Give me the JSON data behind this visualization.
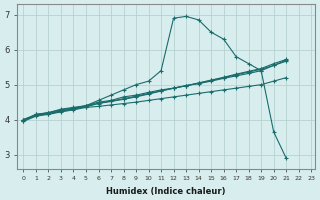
{
  "xlabel": "Humidex (Indice chaleur)",
  "ylabel": "",
  "bg_color": "#d8eeee",
  "grid_color": "#b0cccc",
  "line_color": "#1a6b6b",
  "xlim": [
    -0.5,
    23.3
  ],
  "ylim": [
    2.6,
    7.3
  ],
  "yticks": [
    3,
    4,
    5,
    6,
    7
  ],
  "xticks": [
    0,
    1,
    2,
    3,
    4,
    5,
    6,
    7,
    8,
    9,
    10,
    11,
    12,
    13,
    14,
    15,
    16,
    17,
    18,
    19,
    20,
    21,
    22,
    23
  ],
  "line1_x": [
    0,
    1,
    2,
    3,
    4,
    5,
    6,
    7,
    8,
    9,
    10,
    11,
    12,
    13,
    14,
    15,
    16,
    17,
    18,
    19,
    20,
    21
  ],
  "line1_y": [
    3.95,
    4.15,
    4.2,
    4.3,
    4.35,
    4.4,
    4.55,
    4.7,
    4.85,
    5.0,
    5.1,
    5.4,
    6.9,
    6.95,
    6.85,
    6.5,
    6.3,
    5.8,
    5.6,
    5.4,
    3.65,
    2.9
  ],
  "line2_x": [
    0,
    1,
    2,
    3,
    4,
    5,
    6,
    7,
    8,
    9,
    10,
    11,
    12,
    13,
    14,
    15,
    16,
    17,
    18,
    19,
    20,
    21
  ],
  "line2_y": [
    4.0,
    4.15,
    4.2,
    4.28,
    4.33,
    4.4,
    4.5,
    4.55,
    4.65,
    4.7,
    4.78,
    4.85,
    4.9,
    4.97,
    5.03,
    5.1,
    5.18,
    5.25,
    5.32,
    5.4,
    5.55,
    5.7
  ],
  "line3_x": [
    0,
    1,
    2,
    3,
    4,
    5,
    6,
    7,
    8,
    9,
    10,
    11,
    12,
    13,
    14,
    15,
    16,
    17,
    18,
    19,
    20,
    21
  ],
  "line3_y": [
    4.0,
    4.13,
    4.18,
    4.25,
    4.32,
    4.38,
    4.47,
    4.53,
    4.6,
    4.67,
    4.75,
    4.82,
    4.9,
    4.97,
    5.04,
    5.12,
    5.2,
    5.28,
    5.36,
    5.44,
    5.55,
    5.67
  ],
  "line4_x": [
    0,
    1,
    2,
    3,
    4,
    5,
    6,
    7,
    8,
    9,
    10,
    11,
    12,
    13,
    14,
    15,
    16,
    17,
    18,
    19,
    20,
    21
  ],
  "line4_y": [
    4.0,
    4.12,
    4.17,
    4.24,
    4.3,
    4.37,
    4.46,
    4.52,
    4.58,
    4.65,
    4.73,
    4.82,
    4.9,
    4.97,
    5.05,
    5.13,
    5.21,
    5.3,
    5.38,
    5.46,
    5.6,
    5.72
  ],
  "line5_x": [
    0,
    1,
    2,
    3,
    4,
    5,
    6,
    7,
    8,
    9,
    10,
    11,
    12,
    13,
    14,
    15,
    16,
    17,
    18,
    19,
    20,
    21
  ],
  "line5_y": [
    3.95,
    4.1,
    4.15,
    4.22,
    4.28,
    4.35,
    4.38,
    4.42,
    4.46,
    4.5,
    4.55,
    4.6,
    4.65,
    4.7,
    4.75,
    4.8,
    4.85,
    4.9,
    4.95,
    5.0,
    5.1,
    5.2
  ]
}
